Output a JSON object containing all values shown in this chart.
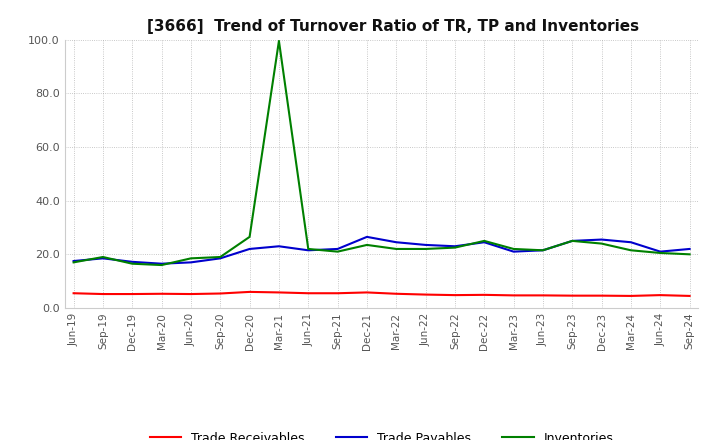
{
  "title": "[3666]  Trend of Turnover Ratio of TR, TP and Inventories",
  "x_labels": [
    "Jun-19",
    "Sep-19",
    "Dec-19",
    "Mar-20",
    "Jun-20",
    "Sep-20",
    "Dec-20",
    "Mar-21",
    "Jun-21",
    "Sep-21",
    "Dec-21",
    "Mar-22",
    "Jun-22",
    "Sep-22",
    "Dec-22",
    "Mar-23",
    "Jun-23",
    "Sep-23",
    "Dec-23",
    "Mar-24",
    "Jun-24",
    "Sep-24"
  ],
  "trade_receivables": [
    5.5,
    5.2,
    5.2,
    5.3,
    5.2,
    5.4,
    6.0,
    5.8,
    5.5,
    5.5,
    5.8,
    5.3,
    5.0,
    4.8,
    4.9,
    4.7,
    4.7,
    4.6,
    4.6,
    4.5,
    4.8,
    4.5
  ],
  "trade_payables": [
    17.5,
    18.5,
    17.2,
    16.5,
    17.0,
    18.5,
    22.0,
    23.0,
    21.5,
    22.0,
    26.5,
    24.5,
    23.5,
    23.0,
    24.5,
    21.0,
    21.5,
    25.0,
    25.5,
    24.5,
    21.0,
    22.0
  ],
  "inventories": [
    17.0,
    19.0,
    16.5,
    16.0,
    18.5,
    19.0,
    26.5,
    99.5,
    22.0,
    21.0,
    23.5,
    22.0,
    22.0,
    22.5,
    25.0,
    22.0,
    21.5,
    25.0,
    24.0,
    21.5,
    20.5,
    20.0
  ],
  "ylim": [
    0.0,
    100.0
  ],
  "yticks": [
    0.0,
    20.0,
    40.0,
    60.0,
    80.0,
    100.0
  ],
  "color_tr": "#ff0000",
  "color_tp": "#0000cd",
  "color_inv": "#008000",
  "legend_tr": "Trade Receivables",
  "legend_tp": "Trade Payables",
  "legend_inv": "Inventories",
  "background_color": "#ffffff",
  "grid_color": "#999999",
  "title_fontsize": 11,
  "tick_fontsize": 7.5,
  "legend_fontsize": 9,
  "linewidth": 1.5
}
